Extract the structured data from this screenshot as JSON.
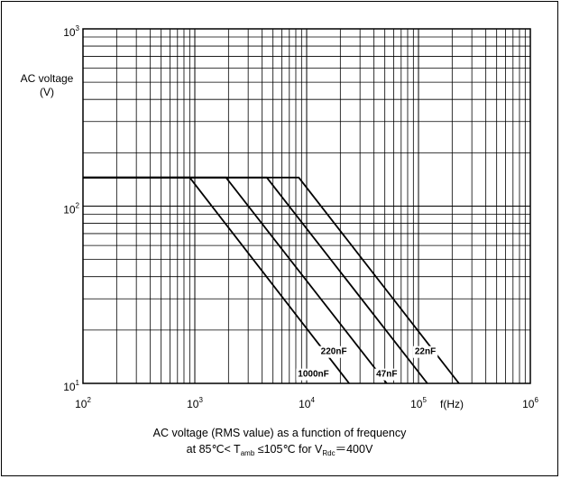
{
  "chart_data": {
    "type": "line",
    "x_scale": "log",
    "y_scale": "log",
    "xlim": [
      100,
      1000000
    ],
    "ylim": [
      10,
      1000
    ],
    "ylabel_line1": "AC voltage",
    "ylabel_line2": "(V)",
    "xlabel": "f(Hz)",
    "grid": true,
    "x_ticks": [
      {
        "base": "10",
        "exp": "2",
        "value": 100
      },
      {
        "base": "10",
        "exp": "3",
        "value": 1000
      },
      {
        "base": "10",
        "exp": "4",
        "value": 10000
      },
      {
        "base": "10",
        "exp": "5",
        "value": 100000
      },
      {
        "base": "10",
        "exp": "6",
        "value": 1000000
      }
    ],
    "y_ticks": [
      {
        "base": "10",
        "exp": "1",
        "value": 10
      },
      {
        "base": "10",
        "exp": "2",
        "value": 100
      },
      {
        "base": "10",
        "exp": "3",
        "value": 1000
      }
    ],
    "series": [
      {
        "name": "1000nF",
        "x": [
          100,
          900,
          24000
        ],
        "y": [
          145,
          145,
          10
        ]
      },
      {
        "name": "220nF",
        "x": [
          100,
          1900,
          52000
        ],
        "y": [
          145,
          145,
          10
        ]
      },
      {
        "name": "47nF",
        "x": [
          100,
          4400,
          120000
        ],
        "y": [
          145,
          145,
          10
        ]
      },
      {
        "name": "22nF",
        "x": [
          100,
          8500,
          230000
        ],
        "y": [
          145,
          145,
          10
        ]
      }
    ]
  },
  "caption": {
    "line1": "AC voltage (RMS value) as a function of frequency",
    "l2_a": "at   85℃< T",
    "l2_sub1": "amb",
    "l2_b": "  ≤105℃  for V",
    "l2_sub2": "Rdc",
    "l2_c": "＝400V"
  }
}
